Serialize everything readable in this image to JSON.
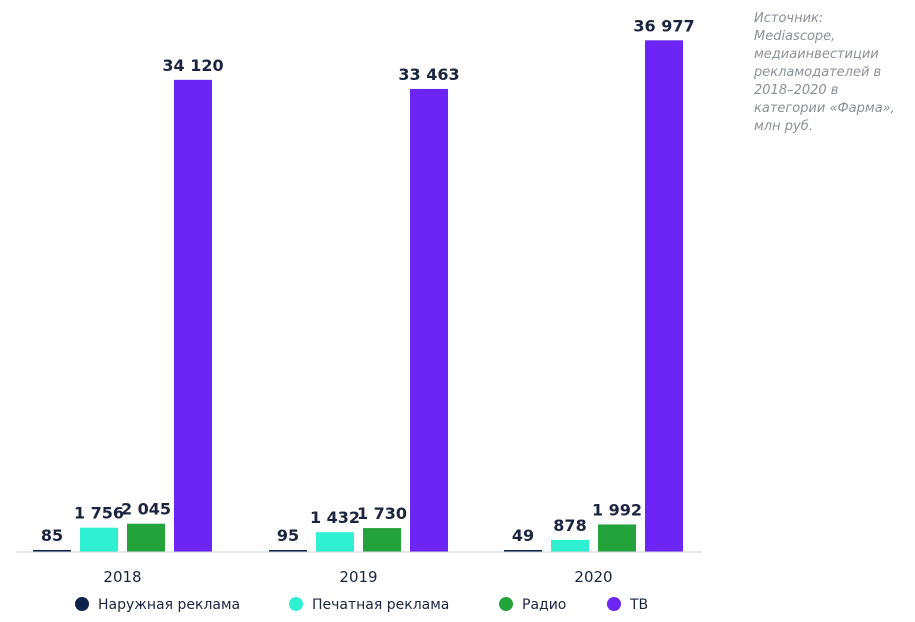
{
  "source_note": "Источник:\nMediascope,\nмедиаинвестиции\nрекламодателей в\n2018–2020 в\nкатегории «Фарма»,\nмлн руб.",
  "chart_data": {
    "type": "bar",
    "categories": [
      "2018",
      "2019",
      "2020"
    ],
    "series": [
      {
        "name": "Наружная реклама",
        "color": "#0f2249",
        "values": [
          85,
          95,
          49
        ],
        "labels": [
          "85",
          "95",
          "49"
        ]
      },
      {
        "name": "Печатная реклама",
        "color": "#2ff0d0",
        "values": [
          1756,
          1432,
          878
        ],
        "labels": [
          "1 756",
          "1 432",
          "878"
        ]
      },
      {
        "name": "Радио",
        "color": "#24a33d",
        "values": [
          2045,
          1730,
          1992
        ],
        "labels": [
          "2 045",
          "1 730",
          "1 992"
        ]
      },
      {
        "name": "ТВ",
        "color": "#6b25f5",
        "values": [
          34120,
          33463,
          36977
        ],
        "labels": [
          "34 120",
          "33 463",
          "36 977"
        ]
      }
    ],
    "ylim": [
      0,
      37000
    ],
    "grid": false,
    "legend_position": "bottom"
  }
}
